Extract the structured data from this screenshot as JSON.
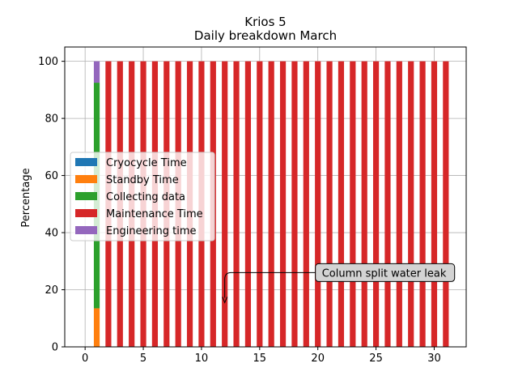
{
  "chart_data": {
    "type": "bar",
    "stacked": true,
    "title": "Krios 5",
    "subtitle": "Daily breakdown March",
    "xlabel": "",
    "ylabel": "Percentage",
    "xlim": [
      -1.75,
      32.75
    ],
    "ylim": [
      0,
      105
    ],
    "x_ticks": [
      0,
      5,
      10,
      15,
      20,
      25,
      30
    ],
    "y_ticks": [
      0,
      20,
      40,
      60,
      80,
      100
    ],
    "grid": true,
    "legend_position": "center-left",
    "x": [
      1,
      2,
      3,
      4,
      5,
      6,
      7,
      8,
      9,
      10,
      11,
      12,
      13,
      14,
      15,
      16,
      17,
      18,
      19,
      20,
      21,
      22,
      23,
      24,
      25,
      26,
      27,
      28,
      29,
      30,
      31
    ],
    "series": [
      {
        "name": "Cryocycle Time",
        "color": "#1f77b4",
        "values": [
          0,
          0,
          0,
          0,
          0,
          0,
          0,
          0,
          0,
          0,
          0,
          0,
          0,
          0,
          0,
          0,
          0,
          0,
          0,
          0,
          0,
          0,
          0,
          0,
          0,
          0,
          0,
          0,
          0,
          0,
          0
        ]
      },
      {
        "name": "Standby Time",
        "color": "#ff7f0e",
        "values": [
          13.5,
          0,
          0,
          0,
          0,
          0,
          0,
          0,
          0,
          0,
          0,
          0,
          0,
          0,
          0,
          0,
          0,
          0,
          0,
          0,
          0,
          0,
          0,
          0,
          0,
          0,
          0,
          0,
          0,
          0,
          0
        ]
      },
      {
        "name": "Collecting data",
        "color": "#2ca02c",
        "values": [
          79,
          0,
          0,
          0,
          0,
          0,
          0,
          0,
          0,
          0,
          0,
          0,
          0,
          0,
          0,
          0,
          0,
          0,
          0,
          0,
          0,
          0,
          0,
          0,
          0,
          0,
          0,
          0,
          0,
          0,
          0
        ]
      },
      {
        "name": "Maintenance Time",
        "color": "#d62728",
        "values": [
          0,
          100,
          100,
          100,
          100,
          100,
          100,
          100,
          100,
          100,
          100,
          100,
          100,
          100,
          100,
          100,
          100,
          100,
          100,
          100,
          100,
          100,
          100,
          100,
          100,
          100,
          100,
          100,
          100,
          100,
          100
        ]
      },
      {
        "name": "Engineering time",
        "color": "#9467bd",
        "values": [
          7.5,
          0,
          0,
          0,
          0,
          0,
          0,
          0,
          0,
          0,
          0,
          0,
          0,
          0,
          0,
          0,
          0,
          0,
          0,
          0,
          0,
          0,
          0,
          0,
          0,
          0,
          0,
          0,
          0,
          0,
          0
        ]
      }
    ],
    "annotations": [
      {
        "text": "Column split water leak",
        "text_x": 20,
        "text_y": 26,
        "arrow_x": 12,
        "arrow_y": 15.5
      }
    ]
  }
}
